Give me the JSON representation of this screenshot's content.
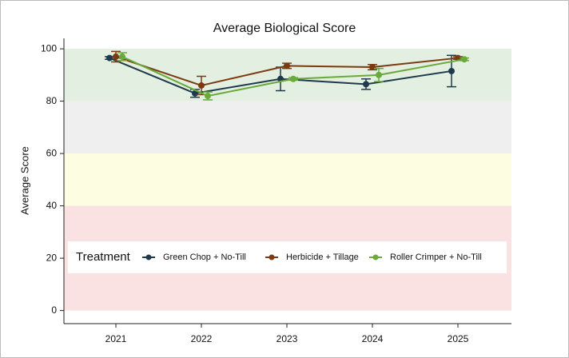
{
  "chart_data": {
    "type": "line",
    "title": "Average Biological Score",
    "y_label": "Average Score",
    "categories": [
      "2021",
      "2022",
      "2023",
      "2024",
      "2025"
    ],
    "series": [
      {
        "name": "Green Chop + No-Till",
        "color": "#1f3a4d",
        "values": [
          96.5,
          83,
          88.5,
          86.5,
          91.5
        ],
        "errors": [
          0.5,
          1.5,
          4.5,
          2,
          6
        ]
      },
      {
        "name": "Herbicide + Tillage",
        "color": "#7b3a12",
        "values": [
          97,
          86,
          93.5,
          93,
          96.5
        ],
        "errors": [
          2,
          3.5,
          1,
          1,
          0.5
        ]
      },
      {
        "name": "Roller Crimper + No-Till",
        "color": "#6aaa3a",
        "values": [
          97,
          82,
          88.5,
          90,
          96
        ],
        "errors": [
          1.5,
          1.5,
          0.5,
          2.5,
          0.5
        ]
      }
    ],
    "bands": [
      {
        "from": 80,
        "to": 100,
        "color": "#e3efe0"
      },
      {
        "from": 60,
        "to": 80,
        "color": "#efefef"
      },
      {
        "from": 40,
        "to": 60,
        "color": "#fdfde1"
      },
      {
        "from": 0,
        "to": 40,
        "color": "#fbe2e2"
      }
    ],
    "legend_title": "Treatment",
    "legend": "bottom",
    "ylim": [
      -5,
      104
    ],
    "yticks": [
      0,
      20,
      40,
      60,
      80,
      100
    ]
  }
}
